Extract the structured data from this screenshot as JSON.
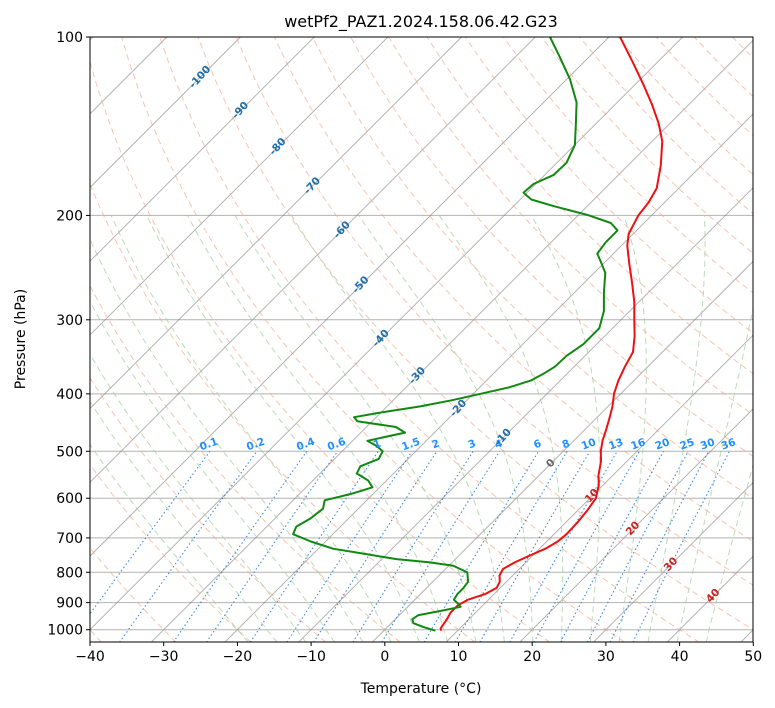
{
  "chart_data": {
    "type": "line",
    "title": "wetPf2_PAZ1.2024.158.06.42.G23",
    "xlabel": "Temperature (°C)",
    "ylabel": "Pressure (hPa)",
    "xlim": [
      -40,
      50
    ],
    "ylim": [
      1050,
      100
    ],
    "y_scale": "log",
    "x_ticks": [
      "−40",
      "−30",
      "−20",
      "−10",
      "0",
      "10",
      "20",
      "30",
      "40",
      "50"
    ],
    "x_tick_values": [
      -40,
      -30,
      -20,
      -10,
      0,
      10,
      20,
      30,
      40,
      50
    ],
    "y_ticks": [
      "1000",
      "900",
      "800",
      "700",
      "600",
      "500",
      "400",
      "300",
      "200",
      "100"
    ],
    "y_tick_values": [
      1000,
      900,
      800,
      700,
      600,
      500,
      400,
      300,
      200,
      100
    ],
    "grid": true,
    "skew": true,
    "series": [
      {
        "role": "temperature",
        "color": "#ee1111",
        "points": [
          [
            1004,
            7.8
          ],
          [
            995,
            7.4
          ],
          [
            960,
            7.0
          ],
          [
            935,
            6.6
          ],
          [
            910,
            6.6
          ],
          [
            890,
            7.2
          ],
          [
            870,
            8.8
          ],
          [
            850,
            9.5
          ],
          [
            830,
            9.1
          ],
          [
            810,
            8.2
          ],
          [
            790,
            7.8
          ],
          [
            770,
            8.5
          ],
          [
            750,
            9.6
          ],
          [
            730,
            10.8
          ],
          [
            710,
            11.5
          ],
          [
            690,
            11.7
          ],
          [
            660,
            11.6
          ],
          [
            630,
            11.3
          ],
          [
            600,
            10.8
          ],
          [
            570,
            9.4
          ],
          [
            550,
            8.1
          ],
          [
            520,
            6.5
          ],
          [
            500,
            5.1
          ],
          [
            480,
            3.9
          ],
          [
            460,
            2.9
          ],
          [
            440,
            1.8
          ],
          [
            420,
            0.6
          ],
          [
            400,
            -0.9
          ],
          [
            380,
            -2.1
          ],
          [
            360,
            -3.1
          ],
          [
            340,
            -4.0
          ],
          [
            320,
            -5.9
          ],
          [
            300,
            -8.2
          ],
          [
            280,
            -10.6
          ],
          [
            260,
            -13.5
          ],
          [
            240,
            -16.7
          ],
          [
            225,
            -19.2
          ],
          [
            215,
            -20.6
          ],
          [
            205,
            -21.4
          ],
          [
            200,
            -21.8
          ],
          [
            190,
            -22.2
          ],
          [
            180,
            -23.0
          ],
          [
            165,
            -25.5
          ],
          [
            150,
            -28.6
          ],
          [
            140,
            -31.5
          ],
          [
            130,
            -35.0
          ],
          [
            120,
            -39.0
          ],
          [
            110,
            -43.5
          ],
          [
            100,
            -48.5
          ]
        ]
      },
      {
        "role": "dewpoint",
        "color": "#118811",
        "points": [
          [
            1004,
            7.0
          ],
          [
            990,
            4.9
          ],
          [
            975,
            3.0
          ],
          [
            960,
            2.3
          ],
          [
            945,
            2.6
          ],
          [
            930,
            5.0
          ],
          [
            915,
            7.2
          ],
          [
            905,
            6.5
          ],
          [
            890,
            5.3
          ],
          [
            870,
            5.0
          ],
          [
            850,
            5.0
          ],
          [
            830,
            4.8
          ],
          [
            800,
            3.4
          ],
          [
            790,
            2.0
          ],
          [
            780,
            0.6
          ],
          [
            770,
            -3.0
          ],
          [
            760,
            -8.0
          ],
          [
            745,
            -13.0
          ],
          [
            730,
            -18.0
          ],
          [
            710,
            -22.0
          ],
          [
            690,
            -25.4
          ],
          [
            670,
            -26.0
          ],
          [
            650,
            -25.2
          ],
          [
            625,
            -24.8
          ],
          [
            605,
            -25.7
          ],
          [
            590,
            -23.0
          ],
          [
            575,
            -21.0
          ],
          [
            560,
            -22.5
          ],
          [
            545,
            -25.0
          ],
          [
            530,
            -25.5
          ],
          [
            515,
            -24.0
          ],
          [
            500,
            -24.5
          ],
          [
            490,
            -26.0
          ],
          [
            480,
            -28.0
          ],
          [
            465,
            -24.0
          ],
          [
            455,
            -26.0
          ],
          [
            445,
            -32.0
          ],
          [
            438,
            -33.0
          ],
          [
            430,
            -30.0
          ],
          [
            420,
            -25.5
          ],
          [
            410,
            -22.0
          ],
          [
            400,
            -19.0
          ],
          [
            390,
            -16.0
          ],
          [
            380,
            -14.0
          ],
          [
            370,
            -13.2
          ],
          [
            360,
            -12.6
          ],
          [
            345,
            -12.5
          ],
          [
            330,
            -11.8
          ],
          [
            310,
            -11.8
          ],
          [
            290,
            -13.5
          ],
          [
            270,
            -16.0
          ],
          [
            250,
            -18.5
          ],
          [
            240,
            -20.5
          ],
          [
            232,
            -22.2
          ],
          [
            222,
            -22.6
          ],
          [
            212,
            -22.6
          ],
          [
            206,
            -24.5
          ],
          [
            200,
            -28.5
          ],
          [
            193,
            -34.5
          ],
          [
            188,
            -38.5
          ],
          [
            183,
            -40.5
          ],
          [
            177,
            -40.3
          ],
          [
            171,
            -38.8
          ],
          [
            163,
            -38.7
          ],
          [
            152,
            -40.0
          ],
          [
            141,
            -42.5
          ],
          [
            129,
            -45.5
          ],
          [
            118,
            -49.5
          ],
          [
            108,
            -54.0
          ],
          [
            100,
            -58.0
          ]
        ]
      }
    ],
    "dry_adiabat_labels": [
      "-100",
      "-90",
      "-80",
      "-70",
      "-60",
      "-50",
      "-40",
      "-30",
      "-20",
      "-10",
      "0",
      "10",
      "20",
      "30",
      "40"
    ],
    "mixing_ratio_labels": [
      "0.1",
      "0.2",
      "0.4",
      "0.6",
      "1",
      "1.5",
      "2",
      "3",
      "4",
      "6",
      "8",
      "10",
      "13",
      "16",
      "20",
      "25",
      "30",
      "36"
    ],
    "colors": {
      "dry_adiabat": "#f4a582",
      "moist_adiabat": "#9dcc9a",
      "mixing_ratio": "#1f78d4",
      "isotherm": "#7f7f7f",
      "isobar": "#7f7f7f",
      "theta_e": "#c8a070",
      "label_cold": "#1f6eaa",
      "label_zero": "#666666",
      "label_warm": "#cc2222",
      "mixing_label": "#1e90ff"
    }
  }
}
